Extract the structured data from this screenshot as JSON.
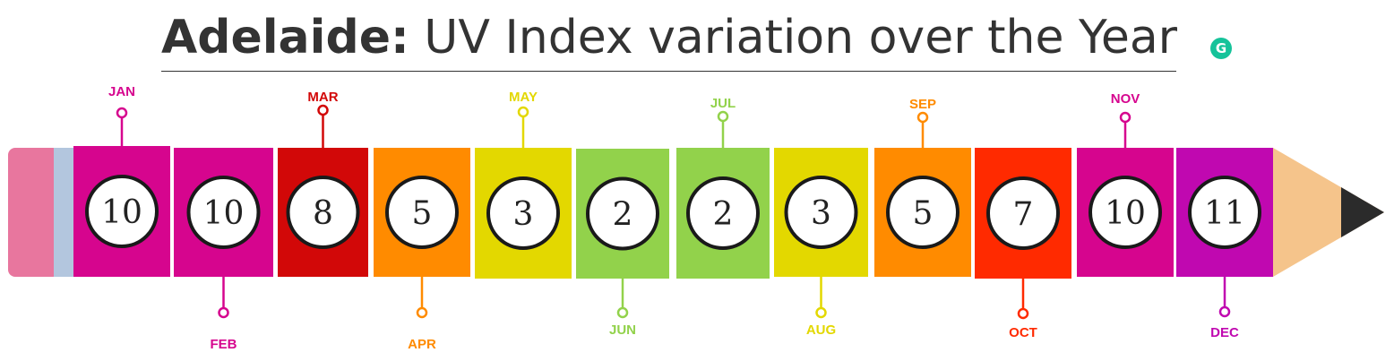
{
  "header": {
    "city": "Adelaide:",
    "subtitle": "UV Index variation over the Year",
    "grammarly_icon": "grammarly-g-icon"
  },
  "chart_data": {
    "type": "bar",
    "categories": [
      "JAN",
      "FEB",
      "MAR",
      "APR",
      "MAY",
      "JUN",
      "JUL",
      "AUG",
      "SEP",
      "OCT",
      "NOV",
      "DEC"
    ],
    "values": [
      10,
      10,
      8,
      5,
      3,
      2,
      2,
      3,
      5,
      7,
      10,
      11
    ],
    "colors": [
      "#d6058e",
      "#d6058e",
      "#d20808",
      "#ff8b00",
      "#e3d800",
      "#92d24b",
      "#92d24b",
      "#e3d800",
      "#ff8b00",
      "#ff2a00",
      "#d6058e",
      "#c008b0"
    ],
    "pencil_colors": {
      "eraser": "#e8769e",
      "ferrule": "#b3c6de",
      "wood": "#f5c48b",
      "tip": "#2b2b2b"
    }
  }
}
